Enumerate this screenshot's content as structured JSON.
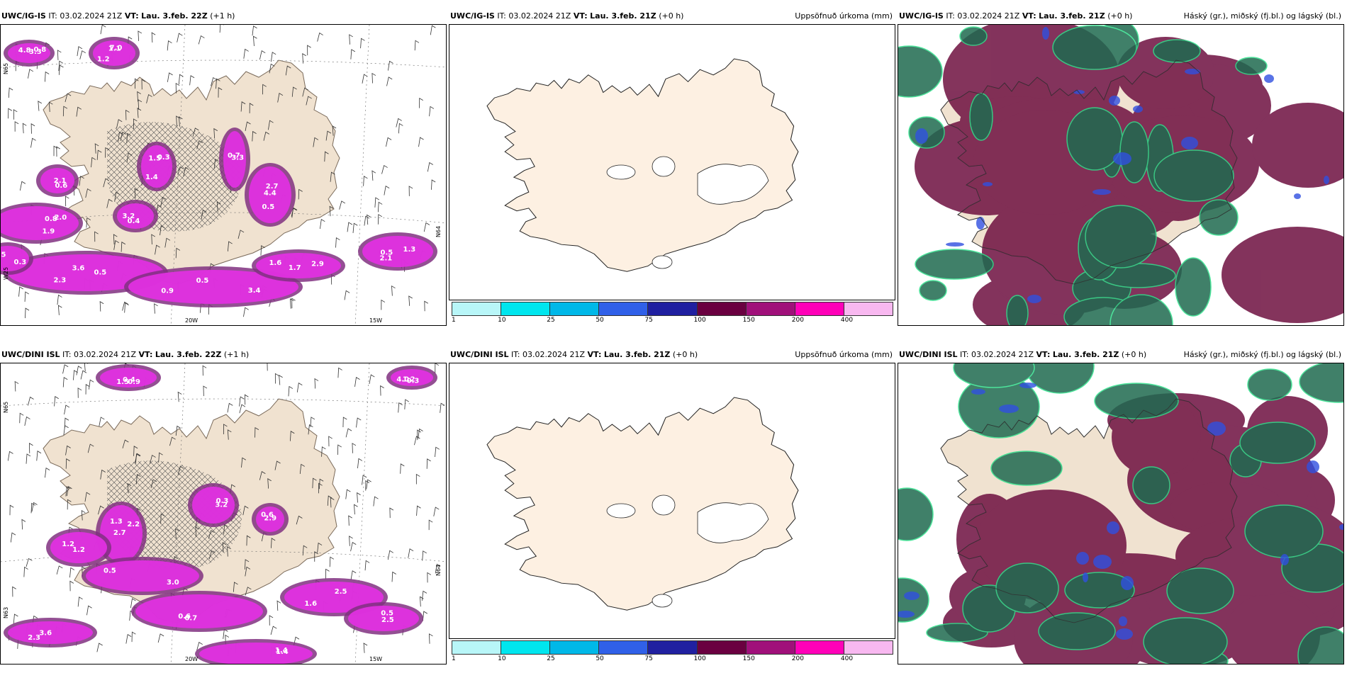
{
  "rows": [
    {
      "panels": [
        {
          "model": "UWC/IG-IS",
          "it_label": "IT:",
          "it": "03.02.2024 21Z",
          "vt_label": "VT:",
          "vt": "Lau. 3.feb. 22Z",
          "lead": "(+1 h)",
          "right": ""
        },
        {
          "model": "UWC/IG-IS",
          "it_label": "IT:",
          "it": "03.02.2024 21Z",
          "vt_label": "VT:",
          "vt": "Lau. 3.feb. 21Z",
          "lead": "(+0 h)",
          "right": "Uppsöfnuð úrkoma (mm)"
        },
        {
          "model": "UWC/IG-IS",
          "it_label": "IT:",
          "it": "03.02.2024 21Z",
          "vt_label": "VT:",
          "vt": "Lau. 3.feb. 21Z",
          "lead": "(+0 h)",
          "right": "Háský (gr.), miðský (fj.bl.) og lágský (bl.)"
        }
      ],
      "precip_labels": [
        "3.3",
        "1.1",
        "0.8",
        "0.5",
        "0.9",
        "2.9",
        "1.3",
        "2.7",
        "1.5",
        "0.7",
        "0.4",
        "0.6",
        "0.3",
        "0.8",
        "1.2",
        "1.9",
        "3.6",
        "3.4",
        "1.6",
        "0.5",
        "4.4",
        "1.4",
        "3.3",
        "3.2",
        "2.1",
        "2.5",
        "4.8",
        "7.0",
        "2.0",
        "2.3",
        "0.5",
        "1.7",
        "2.1",
        "0.5",
        "0.3"
      ],
      "axis_labels": [
        "N65",
        "N64",
        "W25",
        "20W",
        "15W"
      ]
    },
    {
      "panels": [
        {
          "model": "UWC/DINI ISL",
          "it_label": "IT:",
          "it": "03.02.2024 21Z",
          "vt_label": "VT:",
          "vt": "Lau. 3.feb. 22Z",
          "lead": "(+1 h)",
          "right": ""
        },
        {
          "model": "UWC/DINI ISL",
          "it_label": "IT:",
          "it": "03.02.2024 21Z",
          "vt_label": "VT:",
          "vt": "Lau. 3.feb. 21Z",
          "lead": "(+0 h)",
          "right": "Uppsöfnuð úrkoma (mm)"
        },
        {
          "model": "UWC/DINI ISL",
          "it_label": "IT:",
          "it": "03.02.2024 21Z",
          "vt_label": "VT:",
          "vt": "Lau. 3.feb. 21Z",
          "lead": "(+0 h)",
          "right": "Háský (gr.), miðský (fj.bl.) og lágský (bl.)"
        }
      ],
      "precip_labels": [
        "1.5",
        "1.2",
        "2.2",
        "0.3",
        "0.6",
        "1.2",
        "0.5",
        "0.7",
        "2.5",
        "2.3",
        "1.4",
        "0.5",
        "0.9",
        "4.0",
        "2.7",
        "3.2",
        "2.9",
        "1.2",
        "3.0",
        "0.6",
        "1.6",
        "3.6",
        "1.4",
        "2.5",
        "0.4",
        "0.3",
        "1.3"
      ],
      "axis_labels": [
        "N65",
        "N64",
        "N63",
        "20W",
        "15W"
      ]
    }
  ],
  "colorbar": {
    "ticks": [
      "1",
      "10",
      "25",
      "50",
      "75",
      "100",
      "150",
      "200",
      "400",
      ""
    ],
    "colors": [
      "#b8f6f8",
      "#00e6ee",
      "#00b8e8",
      "#3060e8",
      "#2020a0",
      "#6a0040",
      "#a0107a",
      "#ff00b8",
      "#f8b8f0"
    ]
  },
  "colors": {
    "land": "#f0e2d0",
    "land_plain": "#fdf0e2",
    "precip": "#e030e0",
    "precip_dark": "#803080",
    "high_cloud": "#6e1040",
    "mid_cloud": "#1f6a50",
    "low_cloud": "#3050e0"
  }
}
